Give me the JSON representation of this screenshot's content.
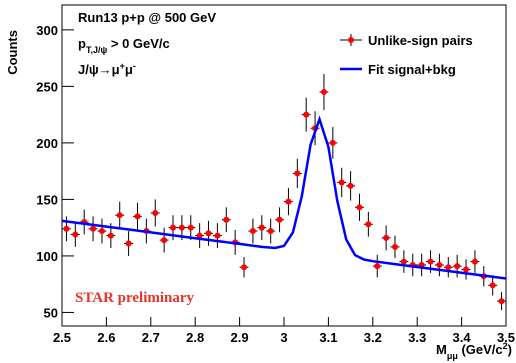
{
  "chart_data": {
    "type": "scatter",
    "annotations": [
      [
        {
          "text": "Run13 p+p @ 500 GeV"
        }
      ],
      [
        {
          "text": "p"
        },
        {
          "text": "T,J/ψ",
          "shift": "sub"
        },
        {
          "text": " > 0 GeV/c"
        }
      ],
      [
        {
          "text": "J/ψ→μ"
        },
        {
          "text": "+",
          "shift": "super"
        },
        {
          "text": "μ"
        },
        {
          "text": "-",
          "shift": "super"
        }
      ]
    ],
    "watermark": "STAR preliminary",
    "ylabel": "Counts",
    "xlabel": [
      {
        "text": "M"
      },
      {
        "text": "μμ",
        "shift": "sub"
      },
      {
        "text": " (GeV/c"
      },
      {
        "text": "2",
        "shift": "super"
      },
      {
        "text": ")"
      }
    ],
    "xlim": [
      2.5,
      3.5
    ],
    "xticks": [
      2.5,
      2.6,
      2.7,
      2.8,
      2.9,
      3,
      3.1,
      3.2,
      3.3,
      3.4,
      3.5
    ],
    "ylim": [
      38,
      322
    ],
    "yticks": [
      50,
      100,
      150,
      200,
      250,
      300
    ],
    "grid": false,
    "legend": "top right",
    "series": [
      {
        "name": "Unlike-sign pairs",
        "type": "errorbar",
        "color": "#ff0000",
        "x": [
          2.51,
          2.53,
          2.55,
          2.57,
          2.59,
          2.61,
          2.63,
          2.65,
          2.67,
          2.69,
          2.71,
          2.73,
          2.75,
          2.77,
          2.79,
          2.81,
          2.83,
          2.85,
          2.87,
          2.89,
          2.91,
          2.93,
          2.95,
          2.97,
          2.99,
          3.01,
          3.03,
          3.05,
          3.07,
          3.09,
          3.11,
          3.13,
          3.15,
          3.17,
          3.19,
          3.21,
          3.23,
          3.25,
          3.27,
          3.29,
          3.31,
          3.33,
          3.35,
          3.37,
          3.39,
          3.41,
          3.43,
          3.45,
          3.47,
          3.49
        ],
        "values": [
          124,
          119,
          130,
          124,
          122,
          118,
          136,
          111,
          135,
          122,
          138,
          114,
          125,
          125,
          125,
          118,
          120,
          118,
          132,
          112,
          90,
          122,
          125,
          122,
          132,
          148,
          173,
          225,
          213,
          245,
          200,
          165,
          162,
          143,
          128,
          91,
          116,
          108,
          95,
          92,
          92,
          95,
          92,
          90,
          91,
          88,
          95,
          82,
          74,
          60
        ],
        "errors": [
          11,
          11,
          11,
          11,
          11,
          11,
          12,
          11,
          12,
          11,
          12,
          11,
          11,
          11,
          11,
          11,
          11,
          11,
          11,
          11,
          9,
          11,
          11,
          11,
          11,
          12,
          13,
          15,
          15,
          16,
          14,
          13,
          13,
          12,
          11,
          10,
          11,
          10,
          10,
          10,
          10,
          10,
          10,
          9,
          10,
          9,
          10,
          9,
          9,
          8
        ]
      },
      {
        "name": "Fit signal+bkg",
        "type": "line",
        "color": "#0000ff",
        "x": [
          2.5,
          2.6,
          2.7,
          2.8,
          2.9,
          2.95,
          2.98,
          3.0,
          3.02,
          3.04,
          3.06,
          3.08,
          3.1,
          3.12,
          3.14,
          3.16,
          3.18,
          3.2,
          3.25,
          3.3,
          3.4,
          3.5
        ],
        "values": [
          131,
          125.9,
          120.8,
          115.7,
          110.6,
          108,
          107,
          108.9,
          120.7,
          152.8,
          198.5,
          221,
          196.5,
          148.7,
          114.6,
          100.7,
          96.8,
          95.3,
          92.75,
          90.2,
          85.1,
          80
        ]
      }
    ]
  }
}
